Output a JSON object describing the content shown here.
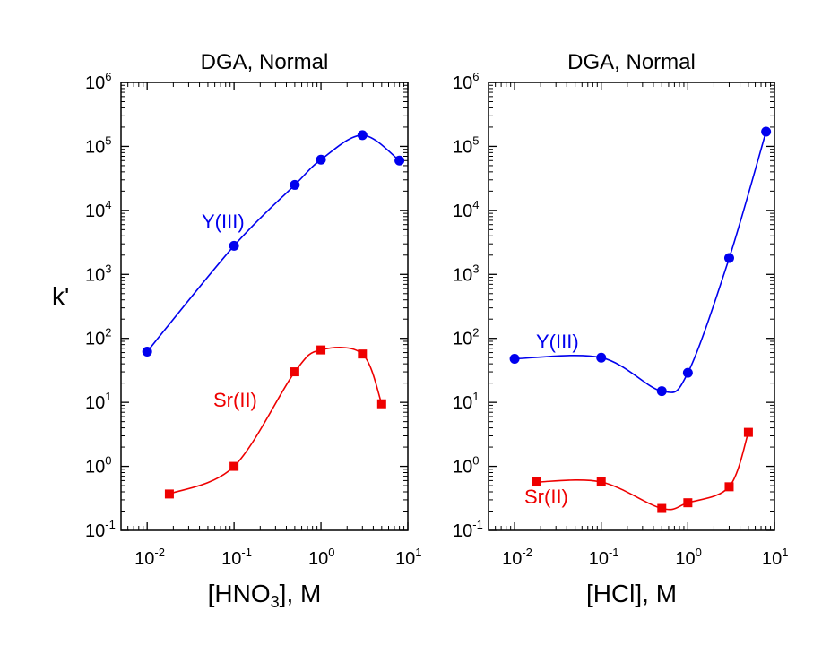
{
  "ylabel": "k'",
  "chart_data": [
    {
      "type": "scatter",
      "title": "DGA, Normal",
      "xlabel_main": "[HNO",
      "xlabel_sub": "3",
      "xlabel_tail": "], M",
      "xscale": "log",
      "yscale": "log",
      "xlim": [
        0.005,
        10
      ],
      "ylim": [
        0.1,
        1000000
      ],
      "xticks": [
        {
          "base": "10",
          "exp": "-2"
        },
        {
          "base": "10",
          "exp": "-1"
        },
        {
          "base": "10",
          "exp": "0"
        },
        {
          "base": "10",
          "exp": "1"
        }
      ],
      "yticks": [
        {
          "base": "10",
          "exp": "-1"
        },
        {
          "base": "10",
          "exp": "0"
        },
        {
          "base": "10",
          "exp": "1"
        },
        {
          "base": "10",
          "exp": "2"
        },
        {
          "base": "10",
          "exp": "3"
        },
        {
          "base": "10",
          "exp": "4"
        },
        {
          "base": "10",
          "exp": "5"
        },
        {
          "base": "10",
          "exp": "6"
        }
      ],
      "series": [
        {
          "name": "Y(III)",
          "color": "#0000ee",
          "marker": "circle",
          "x": [
            0.01,
            0.1,
            0.5,
            1,
            3,
            8
          ],
          "y": [
            62,
            2800,
            25000,
            62000,
            150000,
            60000
          ]
        },
        {
          "name": "Sr(II)",
          "color": "#ee0000",
          "marker": "square",
          "x": [
            0.018,
            0.1,
            0.5,
            1,
            3,
            5
          ],
          "y": [
            0.37,
            1.0,
            30,
            66,
            57,
            9.5
          ]
        }
      ]
    },
    {
      "type": "scatter",
      "title": "DGA, Normal",
      "xlabel_main": "[HCl], M",
      "xlabel_sub": "",
      "xlabel_tail": "",
      "xscale": "log",
      "yscale": "log",
      "xlim": [
        0.005,
        10
      ],
      "ylim": [
        0.1,
        1000000
      ],
      "xticks": [
        {
          "base": "10",
          "exp": "-2"
        },
        {
          "base": "10",
          "exp": "-1"
        },
        {
          "base": "10",
          "exp": "0"
        },
        {
          "base": "10",
          "exp": "1"
        }
      ],
      "yticks": [
        {
          "base": "10",
          "exp": "-1"
        },
        {
          "base": "10",
          "exp": "0"
        },
        {
          "base": "10",
          "exp": "1"
        },
        {
          "base": "10",
          "exp": "2"
        },
        {
          "base": "10",
          "exp": "3"
        },
        {
          "base": "10",
          "exp": "4"
        },
        {
          "base": "10",
          "exp": "5"
        },
        {
          "base": "10",
          "exp": "6"
        }
      ],
      "series": [
        {
          "name": "Y(III)",
          "color": "#0000ee",
          "marker": "circle",
          "x": [
            0.01,
            0.1,
            0.5,
            1,
            3,
            8
          ],
          "y": [
            48,
            50,
            15,
            29,
            1800,
            170000
          ]
        },
        {
          "name": "Sr(II)",
          "color": "#ee0000",
          "marker": "square",
          "x": [
            0.018,
            0.1,
            0.5,
            1,
            3,
            5
          ],
          "y": [
            0.57,
            0.57,
            0.22,
            0.27,
            0.48,
            3.4
          ]
        }
      ]
    }
  ]
}
